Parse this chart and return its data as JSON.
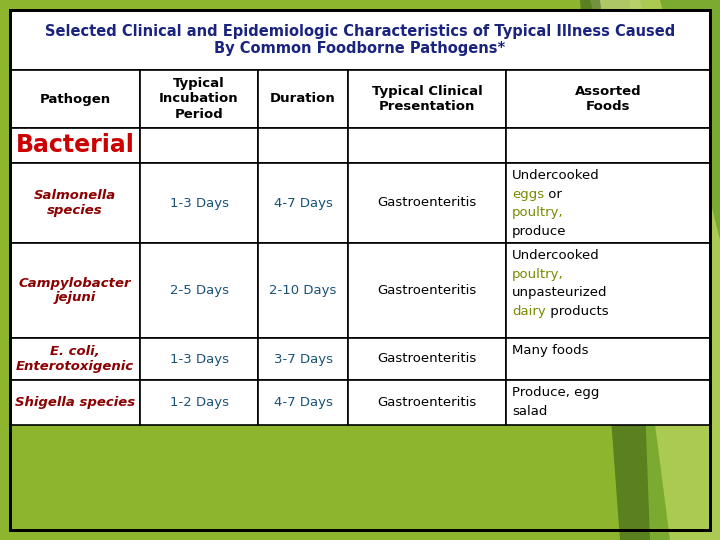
{
  "title": "Selected Clinical and Epidemiologic Characteristics of Typical Illness Caused\nBy Common Foodborne Pathogens*",
  "title_fontsize": 10.5,
  "title_color": "#1a237e",
  "background_color": "#c8d96e",
  "outer_border_color": "#000000",
  "outer_border_lw": 2.0,
  "cell_border_color": "#000000",
  "cell_border_lw": 1.2,
  "columns": [
    "Pathogen",
    "Typical\nIncubation\nPeriod",
    "Duration",
    "Typical Clinical\nPresentation",
    "Assorted\nFoods"
  ],
  "col_header_fontsize": 9.5,
  "col_header_color": "#000000",
  "bacterial_label": "Bacterial",
  "bacterial_fontsize": 17,
  "bacterial_color": "#cc0000",
  "rows": [
    {
      "pathogen": "Salmonella\nspecies",
      "pathogen_color": "#8b0000",
      "incubation": "1-3 Days",
      "incubation_color": "#1a5276",
      "duration": "4-7 Days",
      "duration_color": "#1a5276",
      "clinical": "Gastroenteritis",
      "clinical_color": "#000000",
      "foods_lines": [
        [
          {
            "text": "Undercooked",
            "color": "#000000"
          }
        ],
        [
          {
            "text": "eggs",
            "color": "#7a8a00"
          },
          {
            "text": " or",
            "color": "#000000"
          }
        ],
        [
          {
            "text": "poultry,",
            "color": "#7a8a00"
          }
        ],
        [
          {
            "text": "produce",
            "color": "#000000"
          }
        ]
      ]
    },
    {
      "pathogen": "Campylobacter\njejuni",
      "pathogen_color": "#8b0000",
      "incubation": "2-5 Days",
      "incubation_color": "#1a5276",
      "duration": "2-10 Days",
      "duration_color": "#1a5276",
      "clinical": "Gastroenteritis",
      "clinical_color": "#000000",
      "foods_lines": [
        [
          {
            "text": "Undercooked",
            "color": "#000000"
          }
        ],
        [
          {
            "text": "poultry,",
            "color": "#7a8a00"
          }
        ],
        [
          {
            "text": "unpasteurized",
            "color": "#000000"
          }
        ],
        [
          {
            "text": "dairy",
            "color": "#7a8a00"
          },
          {
            "text": " products",
            "color": "#000000"
          }
        ]
      ]
    },
    {
      "pathogen": "E. coli,\nEnterotoxigenic",
      "pathogen_color": "#8b0000",
      "incubation": "1-3 Days",
      "incubation_color": "#1a5276",
      "duration": "3-7 Days",
      "duration_color": "#1a5276",
      "clinical": "Gastroenteritis",
      "clinical_color": "#000000",
      "foods_lines": [
        [
          {
            "text": "Many foods",
            "color": "#000000"
          }
        ]
      ]
    },
    {
      "pathogen": "Shigella species",
      "pathogen_color": "#8b0000",
      "incubation": "1-2 Days",
      "incubation_color": "#1a5276",
      "duration": "4-7 Days",
      "duration_color": "#1a5276",
      "clinical": "Gastroenteritis",
      "clinical_color": "#000000",
      "foods_lines": [
        [
          {
            "text": "Produce, egg",
            "color": "#000000"
          }
        ],
        [
          {
            "text": "salad",
            "color": "#000000"
          }
        ]
      ]
    }
  ]
}
